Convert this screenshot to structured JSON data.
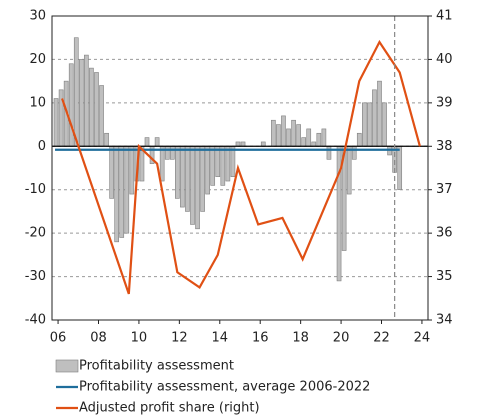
{
  "chart_data": {
    "type": "combo",
    "xlim": [
      2005.7,
      2024.3
    ],
    "xticks": [
      {
        "value": 2006,
        "label": "06"
      },
      {
        "value": 2008,
        "label": "08"
      },
      {
        "value": 2010,
        "label": "10"
      },
      {
        "value": 2012,
        "label": "12"
      },
      {
        "value": 2014,
        "label": "14"
      },
      {
        "value": 2016,
        "label": "16"
      },
      {
        "value": 2018,
        "label": "18"
      },
      {
        "value": 2020,
        "label": "20"
      },
      {
        "value": 2022,
        "label": "22"
      },
      {
        "value": 2024,
        "label": "24"
      }
    ],
    "ylim": [
      -40,
      30
    ],
    "yticks": [
      -40,
      -30,
      -20,
      -10,
      0,
      10,
      20,
      30
    ],
    "y2lim": [
      34,
      41
    ],
    "y2ticks": [
      34,
      35,
      36,
      37,
      38,
      39,
      40,
      41
    ],
    "grid": true,
    "vline": 2022.65,
    "series": [
      {
        "name": "Profitability assessment",
        "type": "bar",
        "color": "#bfbfbf",
        "x": [
          2005.9,
          2006.15,
          2006.4,
          2006.65,
          2006.9,
          2007.15,
          2007.4,
          2007.65,
          2007.9,
          2008.15,
          2008.4,
          2008.65,
          2008.9,
          2009.15,
          2009.4,
          2009.65,
          2009.9,
          2010.15,
          2010.4,
          2010.65,
          2010.9,
          2011.15,
          2011.4,
          2011.65,
          2011.9,
          2012.15,
          2012.4,
          2012.65,
          2012.9,
          2013.15,
          2013.4,
          2013.65,
          2013.9,
          2014.15,
          2014.4,
          2014.65,
          2014.9,
          2015.15,
          2015.4,
          2015.65,
          2015.9,
          2016.15,
          2016.4,
          2016.65,
          2016.9,
          2017.15,
          2017.4,
          2017.65,
          2017.9,
          2018.15,
          2018.4,
          2018.65,
          2018.9,
          2019.15,
          2019.4,
          2019.65,
          2019.9,
          2020.15,
          2020.4,
          2020.65,
          2020.9,
          2021.15,
          2021.4,
          2021.65,
          2021.9,
          2022.15,
          2022.4,
          2022.65,
          2022.9
        ],
        "values": [
          11,
          13,
          15,
          19,
          25,
          20,
          21,
          18,
          17,
          14,
          3,
          -12,
          -22,
          -21,
          -20,
          -11,
          -8,
          -8,
          2,
          -4,
          2,
          -8,
          -3,
          -3,
          -12,
          -14,
          -15,
          -18,
          -19,
          -15,
          -11,
          -9,
          -7,
          -9,
          -8,
          -7,
          1,
          1,
          0,
          0,
          0,
          1,
          0,
          6,
          5,
          7,
          4,
          6,
          5,
          2,
          4,
          1,
          3,
          4,
          -3,
          0,
          -31,
          -24,
          -11,
          -3,
          3,
          10,
          10,
          13,
          15,
          10,
          -2,
          -6,
          -10
        ]
      },
      {
        "name": "Profitability assessment, average 2006-2022",
        "type": "line",
        "color": "#1f6e9c",
        "x": [
          2005.85,
          2022.9
        ],
        "values": [
          -0.8,
          -0.8
        ]
      },
      {
        "name": "Adjusted profit share (right)",
        "type": "line",
        "axis": "y2",
        "color": "#e05014",
        "x": [
          2006.2,
          2009.5,
          2010.0,
          2010.9,
          2011.9,
          2013.0,
          2013.9,
          2014.9,
          2015.9,
          2017.1,
          2018.1,
          2020.0,
          2020.9,
          2021.9,
          2022.9,
          2023.9
        ],
        "values": [
          39.1,
          34.6,
          38.0,
          37.6,
          35.1,
          34.75,
          35.5,
          37.5,
          36.2,
          36.35,
          35.4,
          37.5,
          39.5,
          40.4,
          39.7,
          38.0
        ]
      }
    ]
  }
}
